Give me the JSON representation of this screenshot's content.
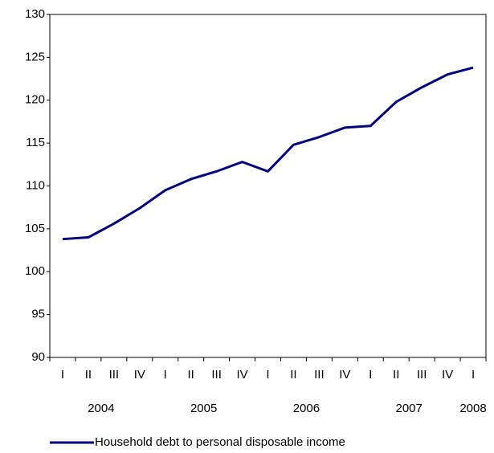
{
  "chart_data": {
    "type": "line",
    "categories": [
      "I",
      "II",
      "III",
      "IV",
      "I",
      "II",
      "III",
      "IV",
      "I",
      "II",
      "III",
      "IV",
      "I",
      "II",
      "III",
      "IV",
      "I"
    ],
    "year_labels": [
      "2004",
      "2005",
      "2006",
      "2007",
      "2008"
    ],
    "series": [
      {
        "name": "Household debt to personal disposable income",
        "color": "#000080",
        "values": [
          103.8,
          104.0,
          105.6,
          107.4,
          109.5,
          110.8,
          111.7,
          112.8,
          111.7,
          114.8,
          115.7,
          116.8,
          117.0,
          119.8,
          121.5,
          123.0,
          123.8
        ]
      }
    ],
    "ylim": [
      90,
      130
    ],
    "yticks": [
      90,
      95,
      100,
      105,
      110,
      115,
      120,
      125,
      130
    ],
    "grid": false,
    "legend": "bottom"
  }
}
